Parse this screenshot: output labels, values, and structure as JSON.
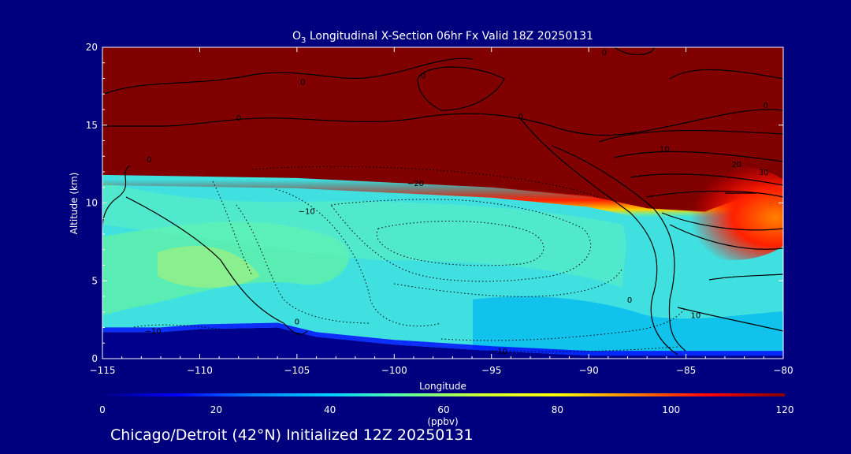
{
  "chart_data": {
    "type": "heatmap",
    "title_prefix": "O",
    "title_sub": "3",
    "title_rest": " Longitudinal X-Section 06hr  Fx Valid 18Z 20250131",
    "xlabel": "Longitude",
    "ylabel": "Altitude (km)",
    "xlim": [
      -115,
      -80
    ],
    "ylim": [
      0,
      20
    ],
    "x_ticks": [
      -115,
      -110,
      -105,
      -100,
      -95,
      -90,
      -85,
      -80
    ],
    "x_tick_labels": [
      "−115",
      "−110",
      "−105",
      "−100",
      "−95",
      "−90",
      "−85",
      "−80"
    ],
    "y_ticks": [
      0,
      5,
      10,
      15,
      20
    ],
    "y_tick_labels": [
      "0",
      "5",
      "10",
      "15",
      "20"
    ],
    "field": "ozone",
    "colorbar": {
      "min": 0,
      "max": 120,
      "ticks": [
        0,
        20,
        40,
        60,
        80,
        100,
        120
      ],
      "tick_labels": [
        "0",
        "20",
        "40",
        "60",
        "80",
        "100",
        "120"
      ],
      "units": "(ppbv)",
      "colormap": [
        "#00007f",
        "#0000ff",
        "#0080ff",
        "#00d0ff",
        "#60ffa0",
        "#d0ff30",
        "#ffff00",
        "#ff8000",
        "#ff0000",
        "#800000"
      ]
    },
    "tropopause_height_km": [
      {
        "lon": -115,
        "alt": 11.8
      },
      {
        "lon": -105,
        "alt": 11.6
      },
      {
        "lon": -95,
        "alt": 11.0
      },
      {
        "lon": -90,
        "alt": 10.4
      },
      {
        "lon": -87,
        "alt": 9.6
      },
      {
        "lon": -84,
        "alt": 9.4
      },
      {
        "lon": -80,
        "alt": 11.2
      }
    ],
    "terrain_height_km": [
      {
        "lon": -115,
        "alt": 1.7
      },
      {
        "lon": -112,
        "alt": 1.7
      },
      {
        "lon": -110,
        "alt": 1.9
      },
      {
        "lon": -106,
        "alt": 2.0
      },
      {
        "lon": -104,
        "alt": 1.4
      },
      {
        "lon": -100,
        "alt": 0.9
      },
      {
        "lon": -95,
        "alt": 0.5
      },
      {
        "lon": -90,
        "alt": 0.2
      },
      {
        "lon": -85,
        "alt": 0.2
      },
      {
        "lon": -80,
        "alt": 0.2
      }
    ],
    "contour_labels": [
      {
        "text": "0",
        "lon": -112.6,
        "alt": 12.6
      },
      {
        "text": "0",
        "lon": -108,
        "alt": 15.3
      },
      {
        "text": "0",
        "lon": -104.7,
        "alt": 17.6
      },
      {
        "text": "0",
        "lon": -98.5,
        "alt": 18.0
      },
      {
        "text": "0",
        "lon": -93.5,
        "alt": 15.4
      },
      {
        "text": "0",
        "lon": -89.2,
        "alt": 19.5
      },
      {
        "text": "0",
        "lon": -80.9,
        "alt": 16.1
      },
      {
        "text": "0",
        "lon": -105,
        "alt": 2.2
      },
      {
        "text": "0",
        "lon": -87.9,
        "alt": 3.6
      },
      {
        "text": "−10",
        "lon": -112.4,
        "alt": 1.6
      },
      {
        "text": "−10",
        "lon": -104.5,
        "alt": 9.3
      },
      {
        "text": "−10",
        "lon": -94.6,
        "alt": 0.3
      },
      {
        "text": "−20",
        "lon": -98.9,
        "alt": 11.1
      },
      {
        "text": "10",
        "lon": -86.1,
        "alt": 13.3
      },
      {
        "text": "10",
        "lon": -84.5,
        "alt": 2.6
      },
      {
        "text": "20",
        "lon": -82.4,
        "alt": 12.3
      },
      {
        "text": "30",
        "lon": -81.0,
        "alt": 11.8
      }
    ]
  },
  "footer": "Chicago/Detroit (42°N) Initialized 12Z 20250131"
}
